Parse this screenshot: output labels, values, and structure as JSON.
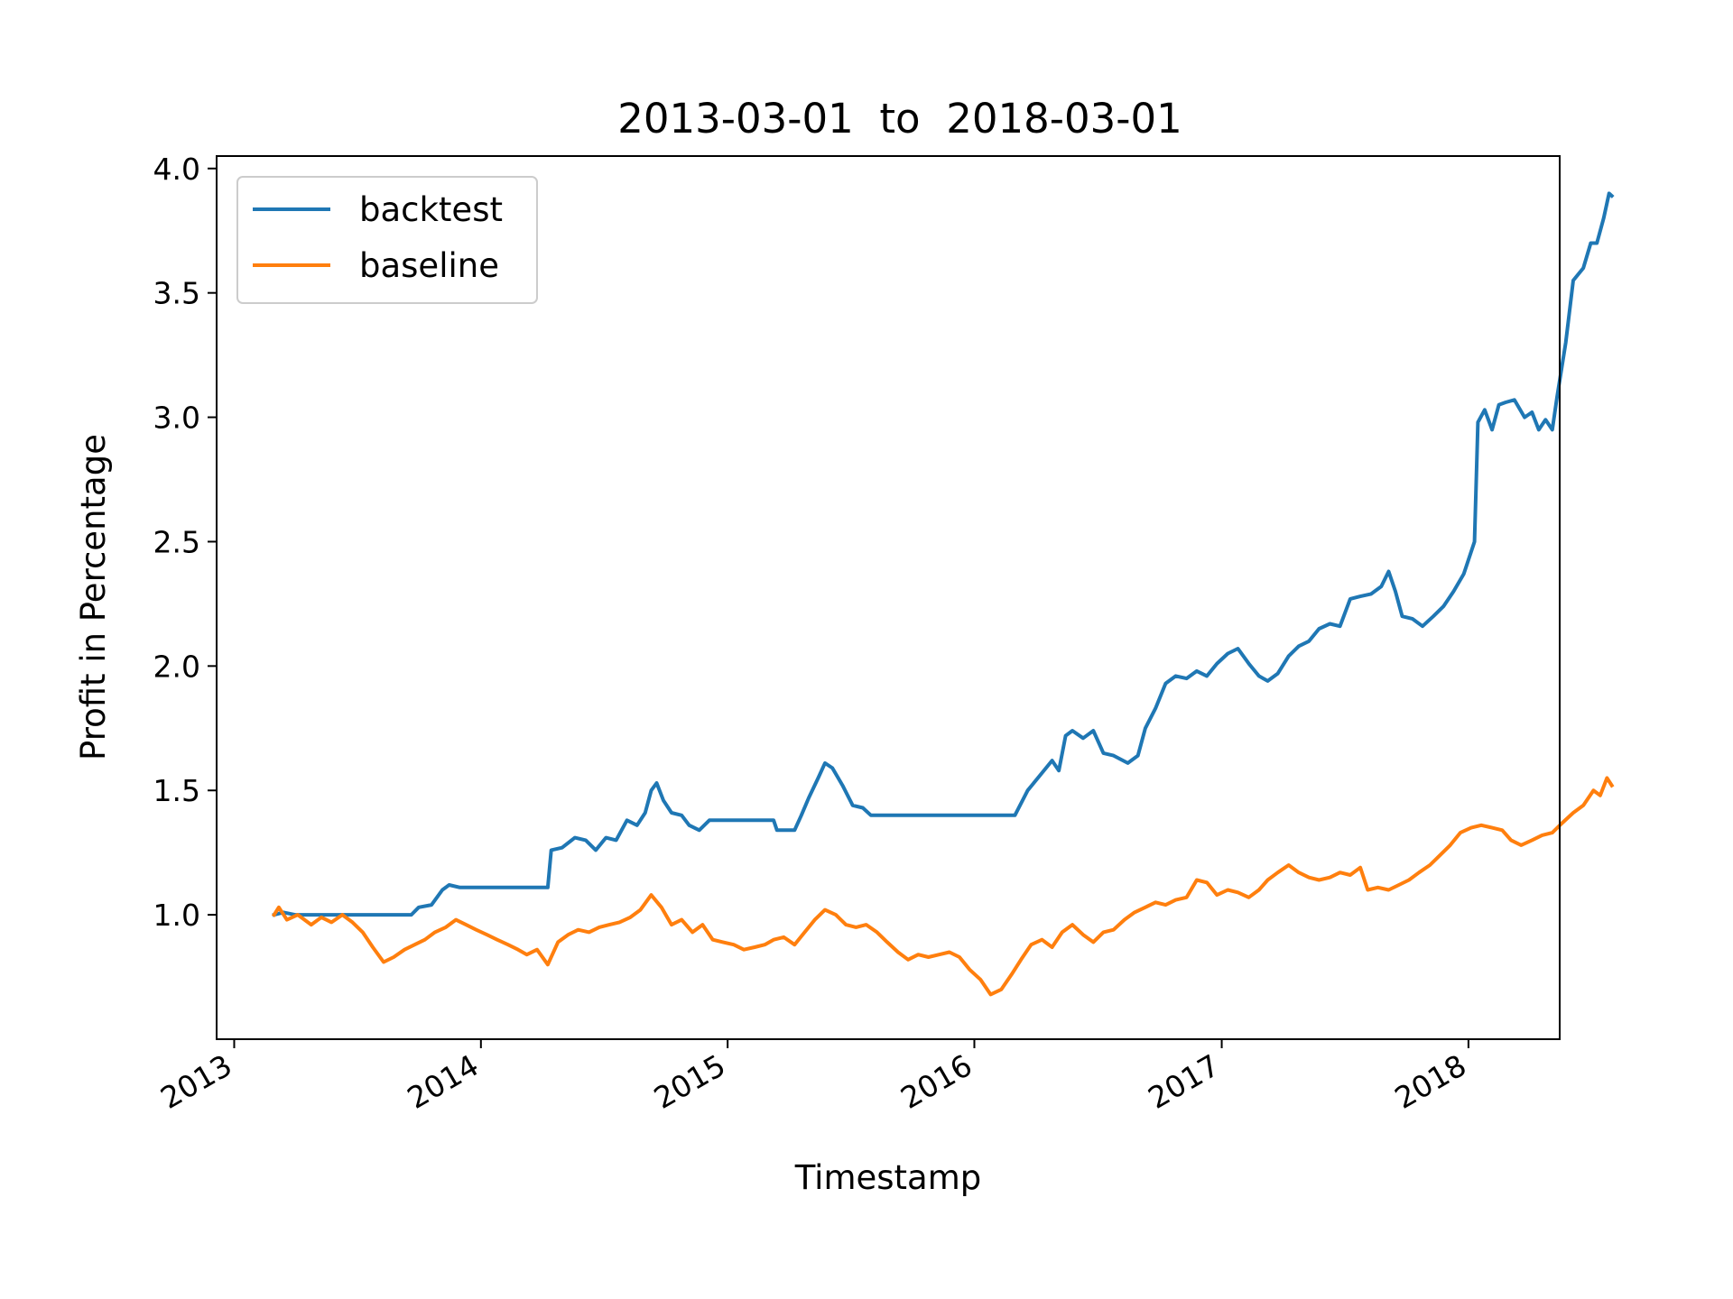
{
  "chart_data": {
    "type": "line",
    "title": "2013-03-01  to  2018-03-01",
    "xlabel": "Timestamp",
    "ylabel": "Profit in Percentage",
    "x_ticks": [
      "2013",
      "2014",
      "2015",
      "2016",
      "2017",
      "2018"
    ],
    "y_ticks": [
      "1.0",
      "1.5",
      "2.0",
      "2.5",
      "3.0",
      "3.5",
      "4.0"
    ],
    "xlim": [
      "2012-12-06",
      "2018-05-16"
    ],
    "ylim": [
      0.5,
      4.05
    ],
    "grid": false,
    "legend_position": "top-left",
    "series": [
      {
        "name": "backtest",
        "color": "#1f77b4",
        "points": [
          [
            "2013-03-01",
            1.0
          ],
          [
            "2013-03-15",
            1.01
          ],
          [
            "2013-04-01",
            1.0
          ],
          [
            "2013-06-01",
            1.0
          ],
          [
            "2013-08-15",
            1.0
          ],
          [
            "2013-09-20",
            1.0
          ],
          [
            "2013-10-01",
            1.03
          ],
          [
            "2013-10-20",
            1.04
          ],
          [
            "2013-11-05",
            1.1
          ],
          [
            "2013-11-15",
            1.12
          ],
          [
            "2013-12-01",
            1.11
          ],
          [
            "2014-01-01",
            1.11
          ],
          [
            "2014-03-01",
            1.11
          ],
          [
            "2014-04-10",
            1.11
          ],
          [
            "2014-04-15",
            1.26
          ],
          [
            "2014-05-01",
            1.27
          ],
          [
            "2014-05-20",
            1.31
          ],
          [
            "2014-06-05",
            1.3
          ],
          [
            "2014-06-20",
            1.26
          ],
          [
            "2014-07-05",
            1.31
          ],
          [
            "2014-07-20",
            1.3
          ],
          [
            "2014-08-05",
            1.38
          ],
          [
            "2014-08-20",
            1.36
          ],
          [
            "2014-09-01",
            1.41
          ],
          [
            "2014-09-10",
            1.5
          ],
          [
            "2014-09-18",
            1.53
          ],
          [
            "2014-09-28",
            1.46
          ],
          [
            "2014-10-10",
            1.41
          ],
          [
            "2014-10-25",
            1.4
          ],
          [
            "2014-11-05",
            1.36
          ],
          [
            "2014-11-20",
            1.34
          ],
          [
            "2014-12-05",
            1.38
          ],
          [
            "2015-01-01",
            1.38
          ],
          [
            "2015-02-01",
            1.38
          ],
          [
            "2015-03-10",
            1.38
          ],
          [
            "2015-03-15",
            1.34
          ],
          [
            "2015-04-10",
            1.34
          ],
          [
            "2015-04-20",
            1.4
          ],
          [
            "2015-05-01",
            1.47
          ],
          [
            "2015-05-15",
            1.55
          ],
          [
            "2015-05-25",
            1.61
          ],
          [
            "2015-06-05",
            1.59
          ],
          [
            "2015-06-20",
            1.52
          ],
          [
            "2015-07-05",
            1.44
          ],
          [
            "2015-07-20",
            1.43
          ],
          [
            "2015-08-01",
            1.4
          ],
          [
            "2015-10-01",
            1.4
          ],
          [
            "2015-12-01",
            1.4
          ],
          [
            "2016-02-01",
            1.4
          ],
          [
            "2016-03-01",
            1.4
          ],
          [
            "2016-03-20",
            1.5
          ],
          [
            "2016-04-10",
            1.57
          ],
          [
            "2016-04-25",
            1.62
          ],
          [
            "2016-05-05",
            1.58
          ],
          [
            "2016-05-15",
            1.72
          ],
          [
            "2016-05-25",
            1.74
          ],
          [
            "2016-06-10",
            1.71
          ],
          [
            "2016-06-25",
            1.74
          ],
          [
            "2016-07-10",
            1.65
          ],
          [
            "2016-07-25",
            1.64
          ],
          [
            "2016-08-15",
            1.61
          ],
          [
            "2016-08-30",
            1.64
          ],
          [
            "2016-09-10",
            1.75
          ],
          [
            "2016-09-25",
            1.83
          ],
          [
            "2016-10-10",
            1.93
          ],
          [
            "2016-10-25",
            1.96
          ],
          [
            "2016-11-10",
            1.95
          ],
          [
            "2016-11-25",
            1.98
          ],
          [
            "2016-12-10",
            1.96
          ],
          [
            "2016-12-25",
            2.01
          ],
          [
            "2017-01-10",
            2.05
          ],
          [
            "2017-01-25",
            2.07
          ],
          [
            "2017-02-10",
            2.01
          ],
          [
            "2017-02-25",
            1.96
          ],
          [
            "2017-03-10",
            1.94
          ],
          [
            "2017-03-25",
            1.97
          ],
          [
            "2017-04-10",
            2.04
          ],
          [
            "2017-04-25",
            2.08
          ],
          [
            "2017-05-10",
            2.1
          ],
          [
            "2017-05-25",
            2.15
          ],
          [
            "2017-06-10",
            2.17
          ],
          [
            "2017-06-25",
            2.16
          ],
          [
            "2017-07-10",
            2.27
          ],
          [
            "2017-07-25",
            2.28
          ],
          [
            "2017-08-10",
            2.29
          ],
          [
            "2017-08-25",
            2.32
          ],
          [
            "2017-09-05",
            2.38
          ],
          [
            "2017-09-15",
            2.3
          ],
          [
            "2017-09-25",
            2.2
          ],
          [
            "2017-10-10",
            2.19
          ],
          [
            "2017-10-25",
            2.16
          ],
          [
            "2017-11-10",
            2.2
          ],
          [
            "2017-11-25",
            2.24
          ],
          [
            "2017-12-10",
            2.3
          ],
          [
            "2017-12-25",
            2.37
          ],
          [
            "2018-01-10",
            2.5
          ],
          [
            "2018-01-15",
            2.98
          ],
          [
            "2018-01-25",
            3.03
          ],
          [
            "2018-02-05",
            2.95
          ],
          [
            "2018-02-15",
            3.05
          ],
          [
            "2018-02-25",
            3.06
          ],
          [
            "2018-03-10",
            3.07
          ],
          [
            "2018-03-25",
            3.0
          ],
          [
            "2018-04-05",
            3.02
          ],
          [
            "2018-04-15",
            2.95
          ],
          [
            "2018-04-25",
            2.99
          ],
          [
            "2018-05-05",
            2.95
          ],
          [
            "2018-05-12",
            3.08
          ],
          [
            "2018-05-25",
            3.3
          ],
          [
            "2018-06-05",
            3.55
          ],
          [
            "2018-06-20",
            3.6
          ],
          [
            "2018-07-01",
            3.7
          ],
          [
            "2018-07-10",
            3.7
          ],
          [
            "2018-07-20",
            3.8
          ],
          [
            "2018-07-28",
            3.9
          ],
          [
            "2018-08-01",
            3.89
          ]
        ]
      },
      {
        "name": "baseline",
        "color": "#ff7f0e",
        "points": [
          [
            "2013-03-01",
            1.0
          ],
          [
            "2013-03-08",
            1.03
          ],
          [
            "2013-03-20",
            0.98
          ],
          [
            "2013-04-05",
            1.0
          ],
          [
            "2013-04-25",
            0.96
          ],
          [
            "2013-05-10",
            0.99
          ],
          [
            "2013-05-25",
            0.97
          ],
          [
            "2013-06-10",
            1.0
          ],
          [
            "2013-06-25",
            0.97
          ],
          [
            "2013-07-10",
            0.93
          ],
          [
            "2013-07-25",
            0.87
          ],
          [
            "2013-08-10",
            0.81
          ],
          [
            "2013-08-25",
            0.83
          ],
          [
            "2013-09-10",
            0.86
          ],
          [
            "2013-09-25",
            0.88
          ],
          [
            "2013-10-10",
            0.9
          ],
          [
            "2013-10-25",
            0.93
          ],
          [
            "2013-11-10",
            0.95
          ],
          [
            "2013-11-25",
            0.98
          ],
          [
            "2013-12-10",
            0.96
          ],
          [
            "2013-12-25",
            0.94
          ],
          [
            "2014-01-10",
            0.92
          ],
          [
            "2014-01-25",
            0.9
          ],
          [
            "2014-02-10",
            0.88
          ],
          [
            "2014-02-25",
            0.86
          ],
          [
            "2014-03-10",
            0.84
          ],
          [
            "2014-03-25",
            0.86
          ],
          [
            "2014-04-10",
            0.8
          ],
          [
            "2014-04-25",
            0.89
          ],
          [
            "2014-05-10",
            0.92
          ],
          [
            "2014-05-25",
            0.94
          ],
          [
            "2014-06-10",
            0.93
          ],
          [
            "2014-06-25",
            0.95
          ],
          [
            "2014-07-10",
            0.96
          ],
          [
            "2014-07-25",
            0.97
          ],
          [
            "2014-08-10",
            0.99
          ],
          [
            "2014-08-25",
            1.02
          ],
          [
            "2014-09-10",
            1.08
          ],
          [
            "2014-09-25",
            1.03
          ],
          [
            "2014-10-10",
            0.96
          ],
          [
            "2014-10-25",
            0.98
          ],
          [
            "2014-11-10",
            0.93
          ],
          [
            "2014-11-25",
            0.96
          ],
          [
            "2014-12-10",
            0.9
          ],
          [
            "2014-12-25",
            0.89
          ],
          [
            "2015-01-10",
            0.88
          ],
          [
            "2015-01-25",
            0.86
          ],
          [
            "2015-02-10",
            0.87
          ],
          [
            "2015-02-25",
            0.88
          ],
          [
            "2015-03-10",
            0.9
          ],
          [
            "2015-03-25",
            0.91
          ],
          [
            "2015-04-10",
            0.88
          ],
          [
            "2015-04-25",
            0.93
          ],
          [
            "2015-05-10",
            0.98
          ],
          [
            "2015-05-25",
            1.02
          ],
          [
            "2015-06-10",
            1.0
          ],
          [
            "2015-06-25",
            0.96
          ],
          [
            "2015-07-10",
            0.95
          ],
          [
            "2015-07-25",
            0.96
          ],
          [
            "2015-08-10",
            0.93
          ],
          [
            "2015-08-25",
            0.89
          ],
          [
            "2015-09-10",
            0.85
          ],
          [
            "2015-09-25",
            0.82
          ],
          [
            "2015-10-10",
            0.84
          ],
          [
            "2015-10-25",
            0.83
          ],
          [
            "2015-11-10",
            0.84
          ],
          [
            "2015-11-25",
            0.85
          ],
          [
            "2015-12-10",
            0.83
          ],
          [
            "2015-12-25",
            0.78
          ],
          [
            "2016-01-10",
            0.74
          ],
          [
            "2016-01-25",
            0.68
          ],
          [
            "2016-02-10",
            0.7
          ],
          [
            "2016-02-25",
            0.76
          ],
          [
            "2016-03-10",
            0.82
          ],
          [
            "2016-03-25",
            0.88
          ],
          [
            "2016-04-10",
            0.9
          ],
          [
            "2016-04-25",
            0.87
          ],
          [
            "2016-05-10",
            0.93
          ],
          [
            "2016-05-25",
            0.96
          ],
          [
            "2016-06-10",
            0.92
          ],
          [
            "2016-06-25",
            0.89
          ],
          [
            "2016-07-10",
            0.93
          ],
          [
            "2016-07-25",
            0.94
          ],
          [
            "2016-08-10",
            0.98
          ],
          [
            "2016-08-25",
            1.01
          ],
          [
            "2016-09-10",
            1.03
          ],
          [
            "2016-09-25",
            1.05
          ],
          [
            "2016-10-10",
            1.04
          ],
          [
            "2016-10-25",
            1.06
          ],
          [
            "2016-11-10",
            1.07
          ],
          [
            "2016-11-25",
            1.14
          ],
          [
            "2016-12-10",
            1.13
          ],
          [
            "2016-12-25",
            1.08
          ],
          [
            "2017-01-10",
            1.1
          ],
          [
            "2017-01-25",
            1.09
          ],
          [
            "2017-02-10",
            1.07
          ],
          [
            "2017-02-25",
            1.1
          ],
          [
            "2017-03-10",
            1.14
          ],
          [
            "2017-03-25",
            1.17
          ],
          [
            "2017-04-10",
            1.2
          ],
          [
            "2017-04-25",
            1.17
          ],
          [
            "2017-05-10",
            1.15
          ],
          [
            "2017-05-25",
            1.14
          ],
          [
            "2017-06-10",
            1.15
          ],
          [
            "2017-06-25",
            1.17
          ],
          [
            "2017-07-10",
            1.16
          ],
          [
            "2017-07-25",
            1.19
          ],
          [
            "2017-08-05",
            1.1
          ],
          [
            "2017-08-20",
            1.11
          ],
          [
            "2017-09-05",
            1.1
          ],
          [
            "2017-09-20",
            1.12
          ],
          [
            "2017-10-05",
            1.14
          ],
          [
            "2017-10-20",
            1.17
          ],
          [
            "2017-11-05",
            1.2
          ],
          [
            "2017-11-20",
            1.24
          ],
          [
            "2017-12-05",
            1.28
          ],
          [
            "2017-12-20",
            1.33
          ],
          [
            "2018-01-05",
            1.35
          ],
          [
            "2018-01-20",
            1.36
          ],
          [
            "2018-02-05",
            1.35
          ],
          [
            "2018-02-20",
            1.34
          ],
          [
            "2018-03-05",
            1.3
          ],
          [
            "2018-03-20",
            1.28
          ],
          [
            "2018-04-05",
            1.3
          ],
          [
            "2018-04-20",
            1.32
          ],
          [
            "2018-05-05",
            1.33
          ],
          [
            "2018-05-20",
            1.37
          ],
          [
            "2018-06-05",
            1.41
          ],
          [
            "2018-06-20",
            1.44
          ],
          [
            "2018-07-05",
            1.5
          ],
          [
            "2018-07-15",
            1.48
          ],
          [
            "2018-07-25",
            1.55
          ],
          [
            "2018-08-01",
            1.52
          ]
        ]
      }
    ]
  }
}
